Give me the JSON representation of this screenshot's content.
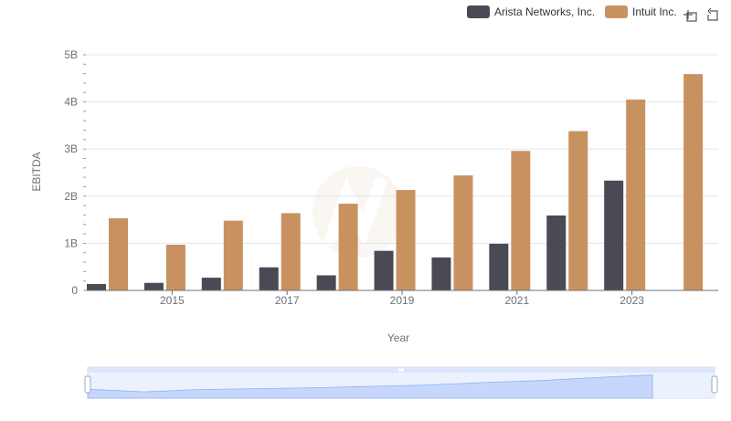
{
  "chart_data": {
    "type": "bar",
    "title": "",
    "xlabel": "Year",
    "ylabel": "EBITDA",
    "ylim": [
      0,
      5000000000
    ],
    "y_ticks": [
      0,
      1000000000,
      2000000000,
      3000000000,
      4000000000,
      5000000000
    ],
    "y_tick_labels": [
      "0",
      "1B",
      "2B",
      "3B",
      "4B",
      "5B"
    ],
    "categories": [
      "2014",
      "2015",
      "2016",
      "2017",
      "2018",
      "2019",
      "2020",
      "2021",
      "2022",
      "2023",
      "2024"
    ],
    "x_tick_labels": [
      "2015",
      "2017",
      "2019",
      "2021",
      "2023"
    ],
    "grid": true,
    "legend_position": "top-right",
    "series": [
      {
        "name": "Arista Networks, Inc.",
        "color": "#4a4a55",
        "values": [
          135000000,
          160000000,
          270000000,
          490000000,
          320000000,
          840000000,
          700000000,
          990000000,
          1590000000,
          2330000000,
          null
        ]
      },
      {
        "name": "Intuit Inc.",
        "color": "#c89260",
        "values": [
          1530000000,
          970000000,
          1480000000,
          1640000000,
          1840000000,
          2130000000,
          2440000000,
          2960000000,
          3380000000,
          4050000000,
          4590000000
        ]
      }
    ]
  },
  "toolbox": {
    "zoom_icon": "zoom-select-icon",
    "restore_icon": "restore-icon"
  },
  "colors": {
    "grid": "#e0e6f1",
    "axis": "#6e7079",
    "slider_fill": "#dbe6fd",
    "slider_border": "#d2dbee",
    "slider_line": "#8fb0f7"
  }
}
